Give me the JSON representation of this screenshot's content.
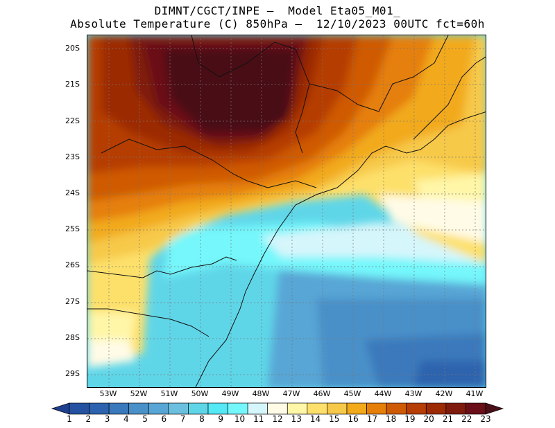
{
  "header": {
    "line1": "DIMNT/CGCT/INPE –  Model Eta05_M01_",
    "line2": "Absolute Temperature (C) 850hPa –  12/10/2023 00UTC fct=60h"
  },
  "axes": {
    "lat_labels": [
      "20S",
      "21S",
      "22S",
      "23S",
      "24S",
      "25S",
      "26S",
      "27S",
      "28S",
      "29S"
    ],
    "lon_labels": [
      "53W",
      "52W",
      "51W",
      "50W",
      "49W",
      "48W",
      "47W",
      "46W",
      "45W",
      "44W",
      "43W",
      "42W",
      "41W"
    ]
  },
  "colorbar": {
    "labels": [
      "1",
      "2",
      "3",
      "4",
      "5",
      "6",
      "7",
      "8",
      "9",
      "10",
      "11",
      "12",
      "13",
      "14",
      "15",
      "16",
      "17",
      "18",
      "19",
      "20",
      "21",
      "22",
      "23"
    ],
    "colors": [
      "#1d3f8f",
      "#2552a0",
      "#2d63ae",
      "#3a79bc",
      "#4a90c9",
      "#58a6d5",
      "#6cc0df",
      "#5fd6e8",
      "#55e8f5",
      "#74f7fb",
      "#d5f6fb",
      "#fffbe6",
      "#fff6a8",
      "#fde06b",
      "#f7c94a",
      "#f2aa1a",
      "#e57f09",
      "#cf5a06",
      "#b63d04",
      "#9c2a04",
      "#7f1b0c",
      "#6a0e18",
      "#4a0f17"
    ]
  }
}
